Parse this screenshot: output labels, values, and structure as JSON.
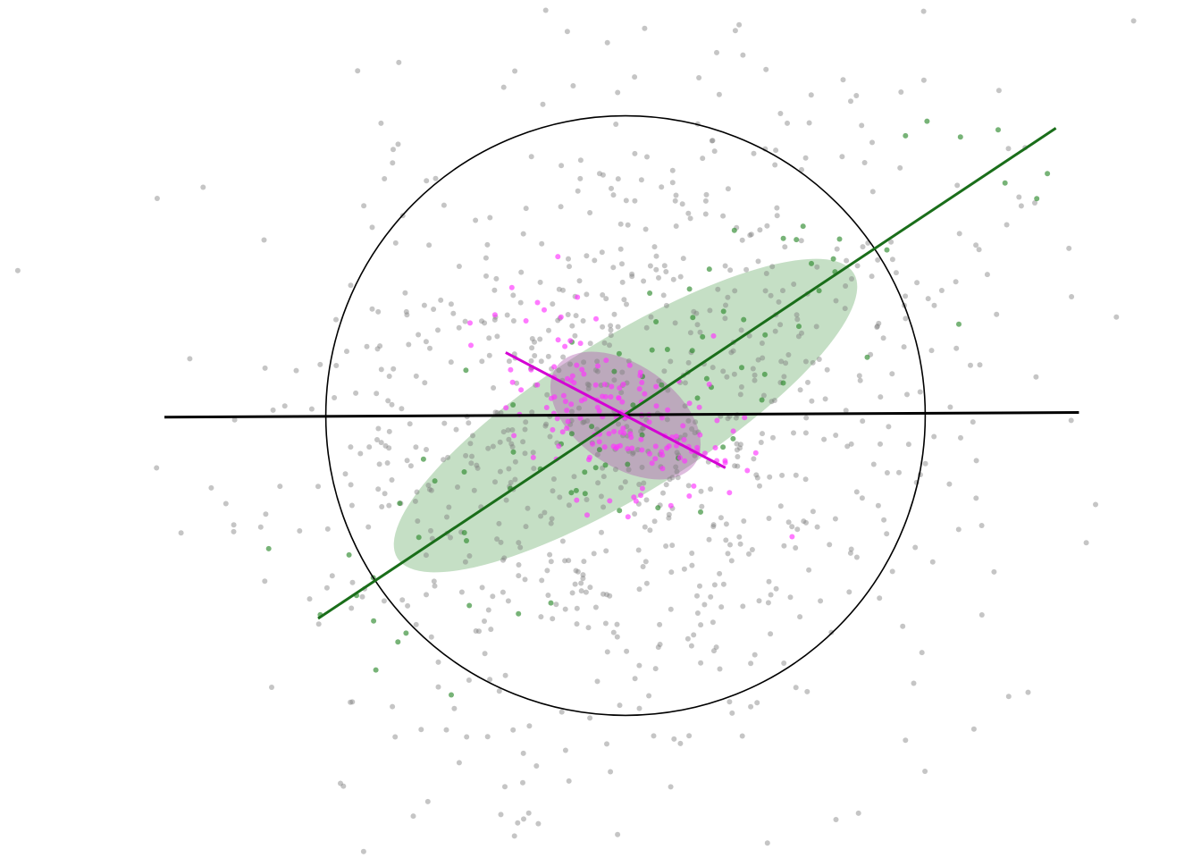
{
  "chart_data": {
    "type": "scatter",
    "title": "",
    "xlabel": "",
    "ylabel": "",
    "grid": false,
    "legend": "none",
    "xlim": [
      -3.3,
      3.3
    ],
    "ylim": [
      -2.65,
      2.65
    ],
    "colors": {
      "gray": "#7f7f7f",
      "green": "#1a6e1a",
      "green_points": "#2e8b2e",
      "green_fill": "#5aa35a",
      "magenta": "#d400d4",
      "magenta_points": "#ff33ff",
      "magenta_fill": "#b060b0",
      "black": "#000000"
    },
    "series": [
      {
        "name": "gray-points",
        "color": "gray",
        "n": 900,
        "cov": [
          [
            1.3,
            0.22
          ],
          [
            0.22,
            1.3
          ]
        ],
        "mean": [
          0,
          0
        ],
        "seed": 11
      },
      {
        "name": "green-points",
        "color": "green_points",
        "n": 90,
        "cov": [
          [
            1.55,
            1.05
          ],
          [
            1.05,
            0.95
          ]
        ],
        "mean": [
          0,
          0
        ],
        "seed": 23
      },
      {
        "name": "magenta-points",
        "color": "magenta_points",
        "n": 160,
        "cov": [
          [
            0.14,
            -0.06
          ],
          [
            -0.06,
            0.1
          ]
        ],
        "mean": [
          0,
          0
        ],
        "seed": 37
      }
    ],
    "circle": {
      "center": [
        0,
        0
      ],
      "radius": 1.95,
      "name": "unit-circle"
    },
    "ellipses": [
      {
        "name": "green-covariance-ellipse",
        "center": [
          0,
          0
        ],
        "semi_major": 1.75,
        "semi_minor": 0.5,
        "angle_deg": 32,
        "fill": "green_fill",
        "opacity": 0.35
      },
      {
        "name": "magenta-covariance-ellipse",
        "center": [
          0,
          0
        ],
        "semi_major": 0.55,
        "semi_minor": 0.33,
        "angle_deg": -35,
        "fill": "magenta_fill",
        "opacity": 0.42
      }
    ],
    "axes_lines": [
      {
        "name": "black-principal-axis",
        "from": [
          -3.0,
          -0.01
        ],
        "to": [
          2.95,
          0.02
        ],
        "color": "black",
        "width": 3
      },
      {
        "name": "green-principal-axis",
        "from": [
          -2.0,
          -1.32
        ],
        "to": [
          2.8,
          1.87
        ],
        "color": "green",
        "width": 3
      },
      {
        "name": "magenta-principal-axis",
        "from": [
          -0.78,
          0.41
        ],
        "to": [
          0.65,
          -0.34
        ],
        "color": "magenta",
        "width": 3
      }
    ]
  }
}
